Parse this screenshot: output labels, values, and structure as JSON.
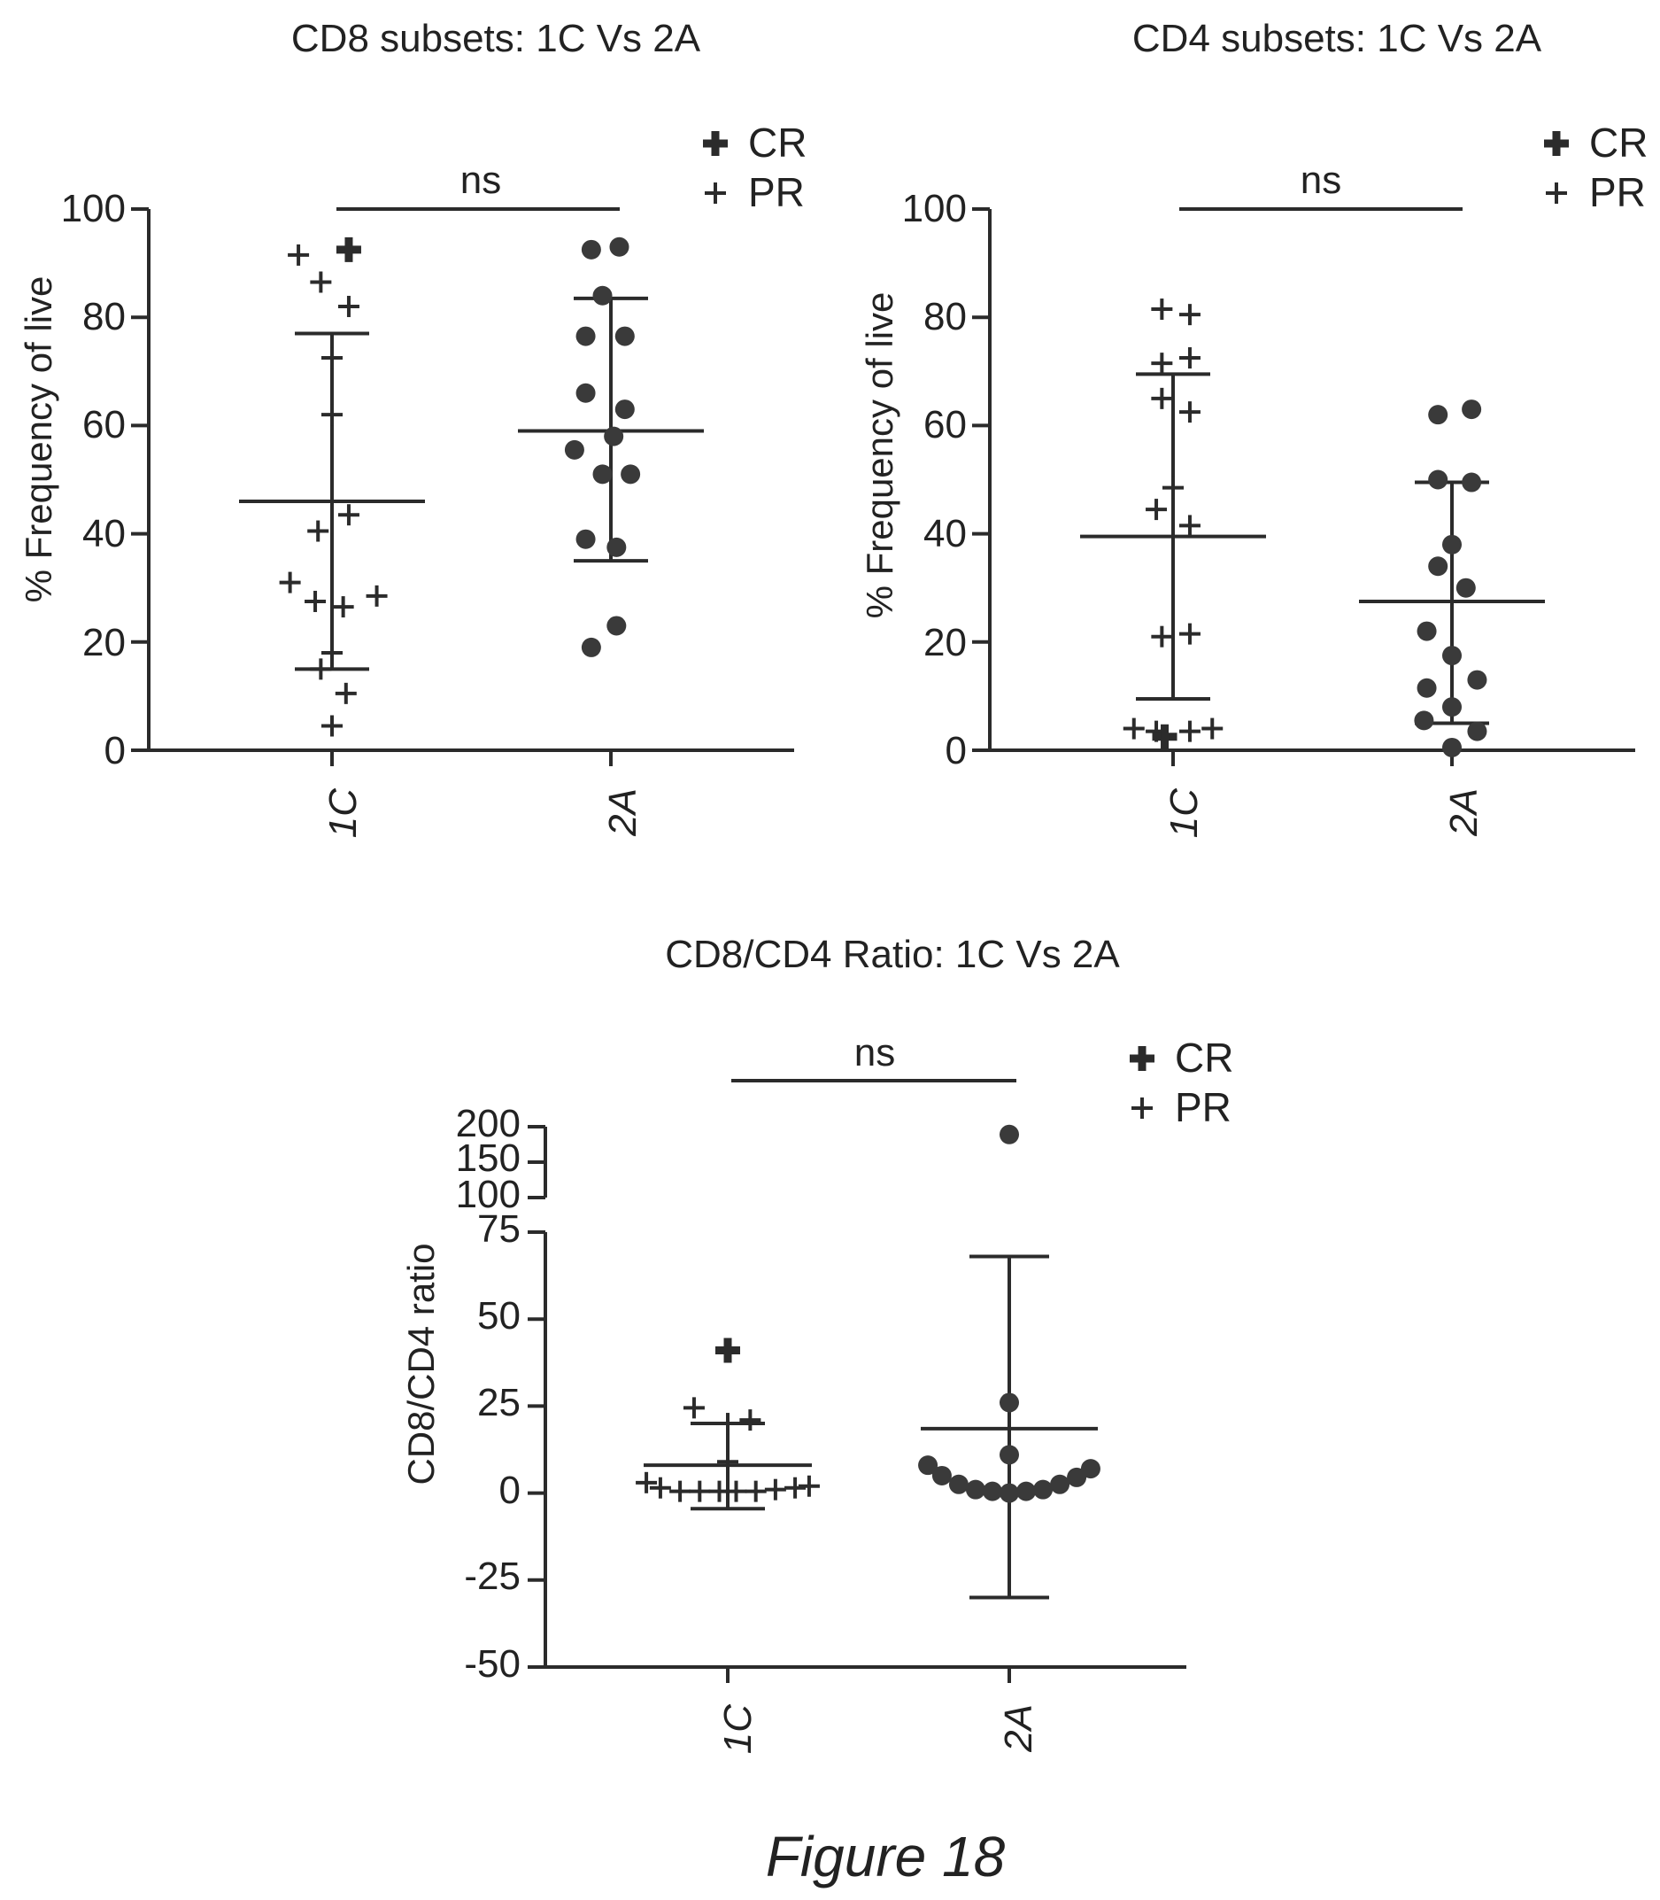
{
  "figure_caption": "Figure 18",
  "legend_labels": {
    "cr": "CR",
    "pr": "PR"
  },
  "chart_data": [
    {
      "type": "scatter",
      "title": "CD8 subsets: 1C Vs 2A",
      "ylabel": "% Frequency of live",
      "ylim": [
        0,
        100
      ],
      "yticks": [
        "0",
        "20",
        "40",
        "60",
        "80",
        "100"
      ],
      "categories": [
        "1C",
        "2A"
      ],
      "significance": "ns",
      "legend": [
        {
          "marker": "bold-plus",
          "label": "CR"
        },
        {
          "marker": "plus",
          "label": "PR"
        }
      ],
      "series": [
        {
          "category": "1C",
          "mean": 46,
          "err_low": 15,
          "err_high": 77,
          "points": [
            {
              "dx": -0.12,
              "y": 91.5,
              "m": "PR"
            },
            {
              "dx": 0.06,
              "y": 92.5,
              "m": "CR"
            },
            {
              "dx": -0.04,
              "y": 86.5,
              "m": "PR"
            },
            {
              "dx": 0.06,
              "y": 82,
              "m": "PR"
            },
            {
              "dx": 0.0,
              "y": 72.5,
              "m": "PR"
            },
            {
              "dx": 0.0,
              "y": 62,
              "m": "PR"
            },
            {
              "dx": 0.06,
              "y": 43.5,
              "m": "PR"
            },
            {
              "dx": -0.05,
              "y": 40.5,
              "m": "PR"
            },
            {
              "dx": -0.15,
              "y": 31,
              "m": "PR"
            },
            {
              "dx": -0.06,
              "y": 27.5,
              "m": "PR"
            },
            {
              "dx": 0.04,
              "y": 26.5,
              "m": "PR"
            },
            {
              "dx": 0.16,
              "y": 28.5,
              "m": "PR"
            },
            {
              "dx": -0.04,
              "y": 15,
              "m": "PR"
            },
            {
              "dx": 0.0,
              "y": 18,
              "m": "PR"
            },
            {
              "dx": 0.05,
              "y": 10.5,
              "m": "PR"
            },
            {
              "dx": 0.0,
              "y": 4.5,
              "m": "PR"
            }
          ]
        },
        {
          "category": "2A",
          "mean": 59,
          "err_low": 35,
          "err_high": 83.5,
          "points": [
            {
              "dx": -0.07,
              "y": 92.5,
              "m": "dot"
            },
            {
              "dx": 0.03,
              "y": 93,
              "m": "dot"
            },
            {
              "dx": -0.03,
              "y": 84,
              "m": "dot"
            },
            {
              "dx": -0.09,
              "y": 76.5,
              "m": "dot"
            },
            {
              "dx": 0.05,
              "y": 76.5,
              "m": "dot"
            },
            {
              "dx": -0.09,
              "y": 66,
              "m": "dot"
            },
            {
              "dx": 0.05,
              "y": 63,
              "m": "dot"
            },
            {
              "dx": -0.13,
              "y": 55.5,
              "m": "dot"
            },
            {
              "dx": 0.01,
              "y": 58,
              "m": "dot"
            },
            {
              "dx": -0.03,
              "y": 51,
              "m": "dot"
            },
            {
              "dx": 0.07,
              "y": 51,
              "m": "dot"
            },
            {
              "dx": -0.09,
              "y": 39,
              "m": "dot"
            },
            {
              "dx": 0.02,
              "y": 37.5,
              "m": "dot"
            },
            {
              "dx": 0.02,
              "y": 23,
              "m": "dot"
            },
            {
              "dx": -0.07,
              "y": 19,
              "m": "dot"
            }
          ]
        }
      ]
    },
    {
      "type": "scatter",
      "title": "CD4 subsets: 1C Vs 2A",
      "ylabel": "% Frequency of live",
      "ylim": [
        0,
        100
      ],
      "yticks": [
        "0",
        "20",
        "40",
        "60",
        "80",
        "100"
      ],
      "categories": [
        "1C",
        "2A"
      ],
      "significance": "ns",
      "legend": [
        {
          "marker": "bold-plus",
          "label": "CR"
        },
        {
          "marker": "plus",
          "label": "PR"
        }
      ],
      "series": [
        {
          "category": "1C",
          "mean": 39.5,
          "err_low": 9.5,
          "err_high": 69.5,
          "points": [
            {
              "dx": -0.04,
              "y": 81.5,
              "m": "PR"
            },
            {
              "dx": 0.06,
              "y": 80.5,
              "m": "PR"
            },
            {
              "dx": -0.04,
              "y": 71.5,
              "m": "PR"
            },
            {
              "dx": 0.06,
              "y": 72.5,
              "m": "PR"
            },
            {
              "dx": -0.04,
              "y": 65,
              "m": "PR"
            },
            {
              "dx": 0.06,
              "y": 62.5,
              "m": "PR"
            },
            {
              "dx": 0.0,
              "y": 48.5,
              "m": "PR"
            },
            {
              "dx": -0.06,
              "y": 44.5,
              "m": "PR"
            },
            {
              "dx": 0.06,
              "y": 41.5,
              "m": "PR"
            },
            {
              "dx": -0.04,
              "y": 21,
              "m": "PR"
            },
            {
              "dx": 0.06,
              "y": 21.5,
              "m": "PR"
            },
            {
              "dx": -0.14,
              "y": 4,
              "m": "PR"
            },
            {
              "dx": -0.06,
              "y": 3.5,
              "m": "PR"
            },
            {
              "dx": -0.03,
              "y": 2.5,
              "m": "CR"
            },
            {
              "dx": 0.06,
              "y": 3.5,
              "m": "PR"
            },
            {
              "dx": 0.14,
              "y": 4,
              "m": "PR"
            }
          ]
        },
        {
          "category": "2A",
          "mean": 27.5,
          "err_low": 5,
          "err_high": 49.5,
          "points": [
            {
              "dx": -0.05,
              "y": 62,
              "m": "dot"
            },
            {
              "dx": 0.07,
              "y": 63,
              "m": "dot"
            },
            {
              "dx": -0.05,
              "y": 50,
              "m": "dot"
            },
            {
              "dx": 0.07,
              "y": 49.5,
              "m": "dot"
            },
            {
              "dx": 0.0,
              "y": 38,
              "m": "dot"
            },
            {
              "dx": -0.05,
              "y": 34,
              "m": "dot"
            },
            {
              "dx": 0.05,
              "y": 30,
              "m": "dot"
            },
            {
              "dx": -0.09,
              "y": 22,
              "m": "dot"
            },
            {
              "dx": 0.0,
              "y": 17.5,
              "m": "dot"
            },
            {
              "dx": -0.09,
              "y": 11.5,
              "m": "dot"
            },
            {
              "dx": 0.09,
              "y": 13,
              "m": "dot"
            },
            {
              "dx": 0.0,
              "y": 8,
              "m": "dot"
            },
            {
              "dx": -0.1,
              "y": 5.5,
              "m": "dot"
            },
            {
              "dx": 0.09,
              "y": 3.5,
              "m": "dot"
            },
            {
              "dx": 0.0,
              "y": 0.5,
              "m": "dot"
            }
          ]
        }
      ]
    },
    {
      "type": "scatter",
      "title": "CD8/CD4 Ratio: 1C Vs 2A",
      "ylabel": "CD8/CD4 ratio",
      "ylim": [
        -50,
        200
      ],
      "axis_break": [
        75,
        100
      ],
      "yticks": [
        "-50",
        "-25",
        "0",
        "25",
        "50",
        "75",
        "100",
        "150",
        "200"
      ],
      "categories": [
        "1C",
        "2A"
      ],
      "significance": "ns",
      "legend": [
        {
          "marker": "bold-plus",
          "label": "CR"
        },
        {
          "marker": "plus",
          "label": "PR"
        }
      ],
      "series": [
        {
          "category": "1C",
          "mean": 8,
          "err_low": -4.5,
          "err_high": 20,
          "points": [
            {
              "dx": 0.0,
              "y": 41,
              "m": "CR"
            },
            {
              "dx": -0.12,
              "y": 24.5,
              "m": "PR"
            },
            {
              "dx": 0.0,
              "y": 20,
              "m": "PR"
            },
            {
              "dx": 0.08,
              "y": 21,
              "m": "PR"
            },
            {
              "dx": 0.0,
              "y": 9,
              "m": "PR"
            },
            {
              "dx": -0.29,
              "y": 3,
              "m": "PR"
            },
            {
              "dx": -0.24,
              "y": 1.5,
              "m": "PR"
            },
            {
              "dx": -0.17,
              "y": 0.5,
              "m": "PR"
            },
            {
              "dx": -0.1,
              "y": 0.5,
              "m": "PR"
            },
            {
              "dx": -0.03,
              "y": 0.5,
              "m": "PR"
            },
            {
              "dx": 0.03,
              "y": 0.5,
              "m": "PR"
            },
            {
              "dx": 0.1,
              "y": 0.5,
              "m": "PR"
            },
            {
              "dx": 0.17,
              "y": 1,
              "m": "PR"
            },
            {
              "dx": 0.24,
              "y": 1.5,
              "m": "PR"
            },
            {
              "dx": 0.29,
              "y": 2,
              "m": "PR"
            }
          ]
        },
        {
          "category": "2A",
          "mean": 18.5,
          "err_low": -30,
          "err_high": 68,
          "points": [
            {
              "dx": 0.0,
              "y": 189,
              "m": "dot"
            },
            {
              "dx": 0.0,
              "y": 26,
              "m": "dot"
            },
            {
              "dx": 0.0,
              "y": 11,
              "m": "dot"
            },
            {
              "dx": -0.29,
              "y": 8,
              "m": "dot"
            },
            {
              "dx": -0.24,
              "y": 5,
              "m": "dot"
            },
            {
              "dx": -0.18,
              "y": 2.5,
              "m": "dot"
            },
            {
              "dx": -0.12,
              "y": 1,
              "m": "dot"
            },
            {
              "dx": -0.06,
              "y": 0.5,
              "m": "dot"
            },
            {
              "dx": 0.0,
              "y": 0,
              "m": "dot"
            },
            {
              "dx": 0.06,
              "y": 0.5,
              "m": "dot"
            },
            {
              "dx": 0.12,
              "y": 1,
              "m": "dot"
            },
            {
              "dx": 0.18,
              "y": 2.5,
              "m": "dot"
            },
            {
              "dx": 0.24,
              "y": 4.5,
              "m": "dot"
            },
            {
              "dx": 0.29,
              "y": 7,
              "m": "dot"
            }
          ]
        }
      ]
    }
  ]
}
